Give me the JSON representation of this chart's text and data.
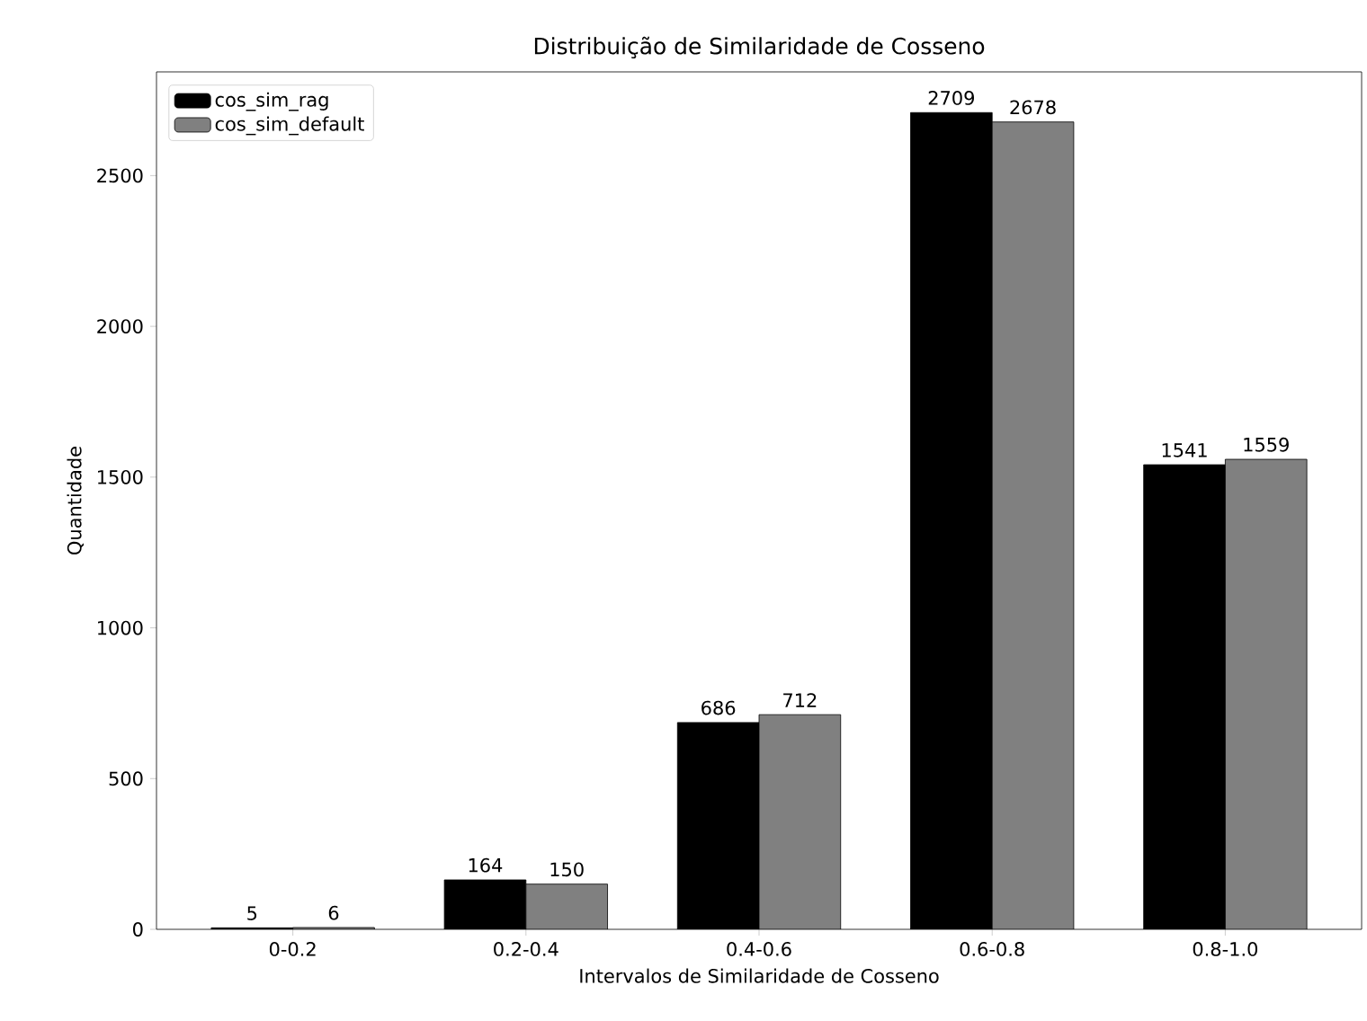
{
  "chart_data": {
    "type": "bar",
    "title": "Distribuição de Similaridade de Cosseno",
    "xlabel": "Intervalos de Similaridade de Cosseno",
    "ylabel": "Quantidade",
    "categories": [
      "0-0.2",
      "0.2-0.4",
      "0.4-0.6",
      "0.6-0.8",
      "0.8-1.0"
    ],
    "series": [
      {
        "name": "cos_sim_rag",
        "color": "#000000",
        "values": [
          5,
          164,
          686,
          2709,
          1541
        ]
      },
      {
        "name": "cos_sim_default",
        "color": "#808080",
        "values": [
          6,
          150,
          712,
          2678,
          1559
        ]
      }
    ],
    "ylim": [
      0,
      2844
    ],
    "yticks": [
      0,
      500,
      1000,
      1500,
      2000,
      2500
    ],
    "data_labels": true,
    "legend": "top left",
    "grid": false
  }
}
